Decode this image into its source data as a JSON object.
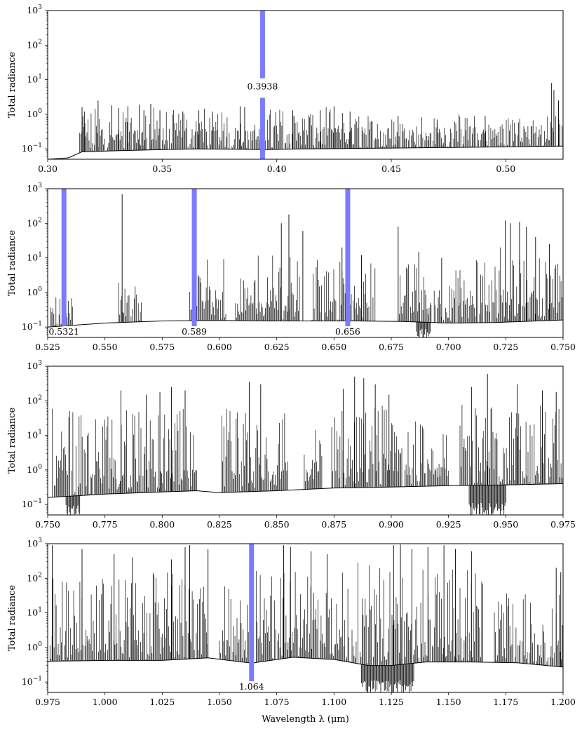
{
  "chart_data": [
    {
      "type": "line",
      "ylabel": "Total radiance",
      "xlabel": "",
      "yscale": "log",
      "xlim": [
        0.3,
        0.525
      ],
      "ylim": [
        0.05,
        1000
      ],
      "xticks": [
        "0.30",
        "0.35",
        "0.40",
        "0.45",
        "0.50"
      ],
      "yticks": [
        {
          "base": "10",
          "exp": "3"
        },
        {
          "base": "10",
          "exp": "2"
        },
        {
          "base": "10",
          "exp": "1"
        },
        {
          "base": "10",
          "exp": "0"
        },
        {
          "base": "10",
          "exp": "−1"
        }
      ],
      "baseline": [
        [
          0.3,
          0.05
        ],
        [
          0.309,
          0.055
        ],
        [
          0.315,
          0.082
        ],
        [
          0.33,
          0.088
        ],
        [
          0.35,
          0.095
        ],
        [
          0.365,
          0.1
        ],
        [
          0.38,
          0.098
        ],
        [
          0.395,
          0.095
        ],
        [
          0.41,
          0.1
        ],
        [
          0.43,
          0.102
        ],
        [
          0.45,
          0.105
        ],
        [
          0.48,
          0.11
        ],
        [
          0.5,
          0.115
        ],
        [
          0.525,
          0.12
        ]
      ],
      "line_regions": [
        {
          "from": 0.314,
          "to": 0.43,
          "peak": 1.6
        },
        {
          "from": 0.43,
          "to": 0.525,
          "peak": 0.9
        }
      ],
      "lines": [
        [
          0.315,
          1.6
        ],
        [
          0.316,
          1.2
        ],
        [
          0.322,
          2.5
        ],
        [
          0.328,
          1.8
        ],
        [
          0.331,
          1.5
        ],
        [
          0.335,
          1.7
        ],
        [
          0.34,
          1.9
        ],
        [
          0.342,
          1.3
        ],
        [
          0.345,
          2.0
        ],
        [
          0.349,
          1.3
        ],
        [
          0.359,
          1.2
        ],
        [
          0.366,
          1.3
        ],
        [
          0.372,
          1.2
        ],
        [
          0.384,
          1.7
        ],
        [
          0.386,
          1.6
        ],
        [
          0.407,
          1.3
        ],
        [
          0.419,
          1.3
        ],
        [
          0.425,
          1.7
        ],
        [
          0.432,
          1.2
        ],
        [
          0.453,
          0.9
        ],
        [
          0.47,
          0.7
        ],
        [
          0.491,
          0.9
        ],
        [
          0.52,
          8.0
        ],
        [
          0.521,
          5.0
        ],
        [
          0.523,
          2.5
        ]
      ],
      "dips": [],
      "annotations": [
        {
          "x": 0.3938,
          "label": "0.3938",
          "label_pos": "middle"
        }
      ],
      "annotation_color": "#7b7bff"
    },
    {
      "type": "line",
      "ylabel": "Total radiance",
      "xlabel": "",
      "yscale": "log",
      "xlim": [
        0.525,
        0.75
      ],
      "ylim": [
        0.05,
        1000
      ],
      "xticks": [
        "0.525",
        "0.550",
        "0.575",
        "0.600",
        "0.625",
        "0.650",
        "0.675",
        "0.700",
        "0.725",
        "0.750"
      ],
      "yticks": [
        {
          "base": "10",
          "exp": "3"
        },
        {
          "base": "10",
          "exp": "2"
        },
        {
          "base": "10",
          "exp": "1"
        },
        {
          "base": "10",
          "exp": "0"
        },
        {
          "base": "10",
          "exp": "−1"
        }
      ],
      "baseline": [
        [
          0.525,
          0.1
        ],
        [
          0.55,
          0.13
        ],
        [
          0.575,
          0.15
        ],
        [
          0.6,
          0.155
        ],
        [
          0.62,
          0.15
        ],
        [
          0.64,
          0.15
        ],
        [
          0.66,
          0.15
        ],
        [
          0.68,
          0.145
        ],
        [
          0.7,
          0.13
        ],
        [
          0.72,
          0.135
        ],
        [
          0.75,
          0.16
        ]
      ],
      "line_regions": [
        {
          "from": 0.525,
          "to": 0.536,
          "peak": 0.8
        },
        {
          "from": 0.556,
          "to": 0.566,
          "peak": 2.5
        },
        {
          "from": 0.587,
          "to": 0.603,
          "peak": 10
        },
        {
          "from": 0.607,
          "to": 0.635,
          "peak": 12
        },
        {
          "from": 0.64,
          "to": 0.668,
          "peak": 10
        },
        {
          "from": 0.678,
          "to": 0.705,
          "peak": 8
        },
        {
          "from": 0.705,
          "to": 0.75,
          "peak": 25
        }
      ],
      "lines": [
        [
          0.5575,
          700
        ],
        [
          0.589,
          80
        ],
        [
          0.5896,
          40
        ],
        [
          0.627,
          100
        ],
        [
          0.6303,
          180
        ],
        [
          0.6364,
          60
        ],
        [
          0.6563,
          50
        ],
        [
          0.6535,
          20
        ],
        [
          0.662,
          12
        ],
        [
          0.678,
          80
        ],
        [
          0.687,
          15
        ],
        [
          0.697,
          10
        ],
        [
          0.7248,
          120
        ],
        [
          0.727,
          100
        ],
        [
          0.731,
          110
        ],
        [
          0.734,
          80
        ],
        [
          0.738,
          40
        ],
        [
          0.744,
          25
        ]
      ],
      "dips": [
        {
          "from": 0.686,
          "to": 0.692,
          "depth": 0.045
        }
      ],
      "annotations": [
        {
          "x": 0.5321,
          "label": "0.5321",
          "label_pos": "bottom"
        },
        {
          "x": 0.589,
          "label": "0.589",
          "label_pos": "bottom"
        },
        {
          "x": 0.656,
          "label": "0.656",
          "label_pos": "bottom"
        }
      ],
      "annotation_color": "#7b7bff"
    },
    {
      "type": "line",
      "ylabel": "Total radiance",
      "xlabel": "",
      "yscale": "log",
      "xlim": [
        0.75,
        0.975
      ],
      "ylim": [
        0.05,
        1000
      ],
      "xticks": [
        "0.750",
        "0.775",
        "0.800",
        "0.825",
        "0.850",
        "0.875",
        "0.900",
        "0.925",
        "0.950",
        "0.975"
      ],
      "yticks": [
        {
          "base": "10",
          "exp": "3"
        },
        {
          "base": "10",
          "exp": "2"
        },
        {
          "base": "10",
          "exp": "1"
        },
        {
          "base": "10",
          "exp": "0"
        },
        {
          "base": "10",
          "exp": "−1"
        }
      ],
      "baseline": [
        [
          0.75,
          0.16
        ],
        [
          0.775,
          0.2
        ],
        [
          0.8,
          0.23
        ],
        [
          0.815,
          0.25
        ],
        [
          0.825,
          0.22
        ],
        [
          0.85,
          0.25
        ],
        [
          0.875,
          0.3
        ],
        [
          0.9,
          0.32
        ],
        [
          0.925,
          0.35
        ],
        [
          0.95,
          0.37
        ],
        [
          0.975,
          0.4
        ]
      ],
      "line_regions": [
        {
          "from": 0.752,
          "to": 0.815,
          "peak": 60
        },
        {
          "from": 0.826,
          "to": 0.855,
          "peak": 60
        },
        {
          "from": 0.862,
          "to": 0.87,
          "peak": 20
        },
        {
          "from": 0.874,
          "to": 0.905,
          "peak": 80
        },
        {
          "from": 0.906,
          "to": 0.925,
          "peak": 30
        },
        {
          "from": 0.93,
          "to": 0.975,
          "peak": 80
        }
      ],
      "lines": [
        [
          0.782,
          200
        ],
        [
          0.793,
          150
        ],
        [
          0.799,
          180
        ],
        [
          0.804,
          250
        ],
        [
          0.81,
          200
        ],
        [
          0.838,
          350
        ],
        [
          0.843,
          300
        ],
        [
          0.879,
          220
        ],
        [
          0.884,
          500
        ],
        [
          0.888,
          450
        ],
        [
          0.893,
          300
        ],
        [
          0.899,
          150
        ],
        [
          0.935,
          250
        ],
        [
          0.942,
          600
        ],
        [
          0.955,
          300
        ],
        [
          0.966,
          200
        ],
        [
          0.972,
          180
        ]
      ],
      "dips": [
        {
          "from": 0.758,
          "to": 0.764,
          "depth": 0.045
        },
        {
          "from": 0.934,
          "to": 0.95,
          "depth": 0.05
        }
      ],
      "annotations": [],
      "annotation_color": "#7b7bff"
    },
    {
      "type": "line",
      "ylabel": "Total radiance",
      "xlabel": "Wavelength λ (μm)",
      "yscale": "log",
      "xlim": [
        0.975,
        1.2
      ],
      "ylim": [
        0.05,
        1000
      ],
      "xticks": [
        "0.975",
        "1.000",
        "1.025",
        "1.050",
        "1.075",
        "1.100",
        "1.125",
        "1.150",
        "1.175",
        "1.200"
      ],
      "yticks": [
        {
          "base": "10",
          "exp": "3"
        },
        {
          "base": "10",
          "exp": "2"
        },
        {
          "base": "10",
          "exp": "1"
        },
        {
          "base": "10",
          "exp": "0"
        },
        {
          "base": "10",
          "exp": "−1"
        }
      ],
      "baseline": [
        [
          0.975,
          0.4
        ],
        [
          1.0,
          0.42
        ],
        [
          1.025,
          0.42
        ],
        [
          1.045,
          0.5
        ],
        [
          1.064,
          0.35
        ],
        [
          1.082,
          0.52
        ],
        [
          1.1,
          0.45
        ],
        [
          1.115,
          0.3
        ],
        [
          1.125,
          0.3
        ],
        [
          1.14,
          0.38
        ],
        [
          1.16,
          0.38
        ],
        [
          1.18,
          0.36
        ],
        [
          1.2,
          0.27
        ]
      ],
      "line_regions": [
        {
          "from": 0.976,
          "to": 1.045,
          "peak": 150
        },
        {
          "from": 1.05,
          "to": 1.063,
          "peak": 60
        },
        {
          "from": 1.066,
          "to": 1.11,
          "peak": 200
        },
        {
          "from": 1.11,
          "to": 1.165,
          "peak": 300
        },
        {
          "from": 1.17,
          "to": 1.2,
          "peak": 60
        }
      ],
      "lines": [
        [
          0.977,
          900
        ],
        [
          0.99,
          700
        ],
        [
          1.004,
          500
        ],
        [
          1.012,
          400
        ],
        [
          1.029,
          350
        ],
        [
          1.035,
          800
        ],
        [
          1.037,
          900
        ],
        [
          1.045,
          700
        ],
        [
          1.078,
          900
        ],
        [
          1.081,
          800
        ],
        [
          1.09,
          600
        ],
        [
          1.097,
          500
        ],
        [
          1.126,
          900
        ],
        [
          1.129,
          950
        ],
        [
          1.134,
          700
        ],
        [
          1.141,
          800
        ],
        [
          1.148,
          900
        ],
        [
          1.153,
          700
        ],
        [
          1.16,
          600
        ],
        [
          1.197,
          200
        ],
        [
          1.199,
          150
        ]
      ],
      "dips": [
        {
          "from": 1.112,
          "to": 1.135,
          "depth": 0.05
        }
      ],
      "annotations": [
        {
          "x": 1.064,
          "label": "1.064",
          "label_pos": "bottom"
        }
      ],
      "annotation_color": "#7b7bff"
    }
  ]
}
